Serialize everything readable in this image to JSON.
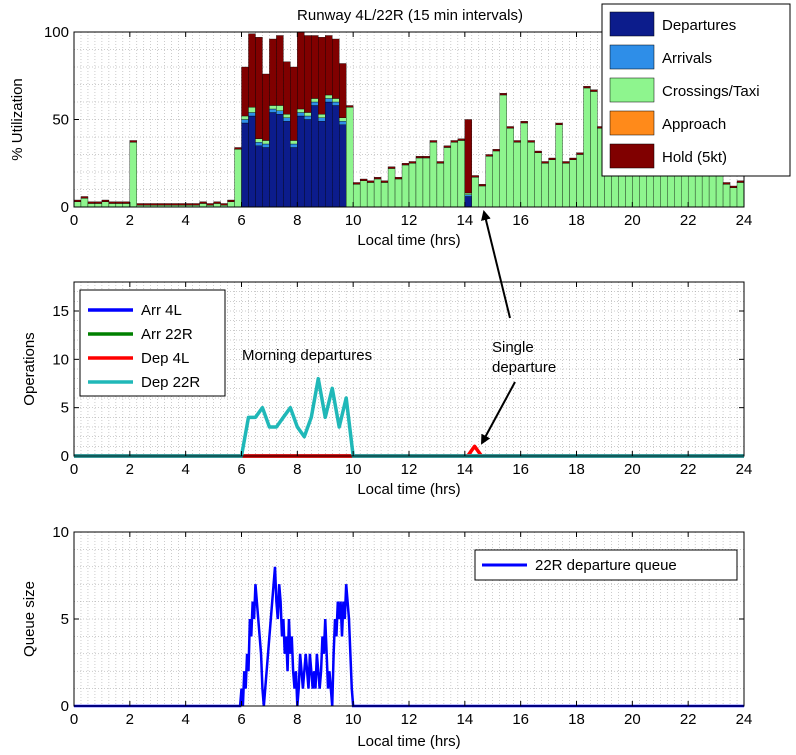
{
  "chart_data": [
    {
      "type": "bar",
      "stacked": true,
      "title": "Runway 4L/22R (15 min intervals)",
      "xlabel": "Local time (hrs)",
      "ylabel": "% Utilization",
      "xlim": [
        0,
        24
      ],
      "ylim": [
        0,
        100
      ],
      "xticks": [
        0,
        2,
        4,
        6,
        8,
        10,
        12,
        14,
        16,
        18,
        20,
        22,
        24
      ],
      "yticks": [
        0,
        50,
        100
      ],
      "grid": true,
      "legend_position": "top-right",
      "bin_width_hours": 0.25,
      "x": [
        0.125,
        0.375,
        0.625,
        0.875,
        1.125,
        1.375,
        1.625,
        1.875,
        2.125,
        2.375,
        2.625,
        2.875,
        3.125,
        3.375,
        3.625,
        3.875,
        4.125,
        4.375,
        4.625,
        4.875,
        5.125,
        5.375,
        5.625,
        5.875,
        6.125,
        6.375,
        6.625,
        6.875,
        7.125,
        7.375,
        7.625,
        7.875,
        8.125,
        8.375,
        8.625,
        8.875,
        9.125,
        9.375,
        9.625,
        9.875,
        10.125,
        10.375,
        10.625,
        10.875,
        11.125,
        11.375,
        11.625,
        11.875,
        12.125,
        12.375,
        12.625,
        12.875,
        13.125,
        13.375,
        13.625,
        13.875,
        14.125,
        14.375,
        14.625,
        14.875,
        15.125,
        15.375,
        15.625,
        15.875,
        16.125,
        16.375,
        16.625,
        16.875,
        17.125,
        17.375,
        17.625,
        17.875,
        18.125,
        18.375,
        18.625,
        18.875,
        19.125,
        19.375,
        19.625,
        19.875,
        20.125,
        20.375,
        20.625,
        20.875,
        21.125,
        21.375,
        21.625,
        21.875,
        22.125,
        22.375,
        22.625,
        22.875,
        23.125,
        23.375,
        23.625,
        23.875
      ],
      "series": [
        {
          "name": "Departures",
          "color": "#0c1c8c",
          "values": [
            0,
            0,
            0,
            0,
            0,
            0,
            0,
            0,
            0,
            0,
            0,
            0,
            0,
            0,
            0,
            0,
            0,
            0,
            0,
            0,
            0,
            0,
            0,
            0,
            48,
            52,
            35,
            34,
            54,
            53,
            49,
            34,
            52,
            50,
            58,
            49,
            60,
            58,
            47,
            0,
            0,
            0,
            0,
            0,
            0,
            0,
            0,
            0,
            0,
            0,
            0,
            0,
            0,
            0,
            0,
            0,
            6,
            0,
            0,
            0,
            0,
            0,
            0,
            0,
            0,
            0,
            0,
            0,
            0,
            0,
            0,
            0,
            0,
            0,
            0,
            0,
            0,
            0,
            0,
            0,
            0,
            0,
            0,
            0,
            0,
            0,
            0,
            0,
            0,
            0,
            0,
            0,
            0,
            0,
            0,
            0
          ]
        },
        {
          "name": "Arrivals",
          "color": "#2e8ee8",
          "values": [
            0,
            0,
            0,
            0,
            0,
            0,
            0,
            0,
            0,
            0,
            0,
            0,
            0,
            0,
            0,
            0,
            0,
            0,
            0,
            0,
            0,
            0,
            0,
            0,
            2,
            2,
            2,
            2,
            2,
            2,
            2,
            2,
            2,
            2,
            2,
            2,
            2,
            2,
            2,
            0,
            0,
            0,
            0,
            0,
            0,
            0,
            0,
            0,
            0,
            0,
            0,
            0,
            0,
            0,
            0,
            0,
            1,
            0,
            0,
            0,
            0,
            0,
            0,
            0,
            0,
            0,
            0,
            0,
            0,
            0,
            0,
            0,
            0,
            0,
            0,
            0,
            0,
            0,
            0,
            0,
            0,
            0,
            0,
            0,
            0,
            0,
            0,
            0,
            0,
            0,
            0,
            0,
            0,
            0,
            0,
            0
          ]
        },
        {
          "name": "Crossings/Taxi",
          "color": "#8ef58e",
          "values": [
            3,
            5,
            2,
            2,
            3,
            2,
            2,
            2,
            37,
            1,
            1,
            1,
            1,
            1,
            1,
            1,
            1,
            1,
            2,
            1,
            2,
            1,
            3,
            33,
            2,
            3,
            2,
            2,
            2,
            3,
            2,
            2,
            2,
            2,
            2,
            2,
            2,
            2,
            2,
            57,
            13,
            15,
            14,
            16,
            14,
            22,
            16,
            24,
            25,
            28,
            28,
            37,
            25,
            34,
            37,
            38,
            1,
            17,
            12,
            29,
            32,
            64,
            45,
            37,
            48,
            37,
            31,
            25,
            27,
            47,
            25,
            27,
            30,
            68,
            66,
            45,
            30,
            32,
            30,
            45,
            25,
            28,
            27,
            29,
            25,
            35,
            23,
            30,
            21,
            28,
            21,
            30,
            19,
            13,
            11,
            14
          ]
        },
        {
          "name": "Approach",
          "color": "#ff8a1a",
          "values": [
            0,
            0,
            0,
            0,
            0,
            0,
            0,
            0,
            0,
            0,
            0,
            0,
            0,
            0,
            0,
            0,
            0,
            0,
            0,
            0,
            0,
            0,
            0,
            0,
            0,
            0,
            0,
            0,
            0,
            0,
            0,
            0,
            0,
            0,
            0,
            0,
            0,
            0,
            0,
            0,
            0,
            0,
            0,
            0,
            0,
            0,
            0,
            0,
            0,
            0,
            0,
            0,
            0,
            0,
            0,
            0,
            0,
            0,
            0,
            0,
            0,
            0,
            0,
            0,
            0,
            0,
            0,
            0,
            0,
            0,
            0,
            0,
            0,
            0,
            0,
            0,
            0,
            0,
            0,
            0,
            0,
            0,
            0,
            0,
            0,
            0,
            0,
            0,
            0,
            0,
            0,
            0,
            0,
            0,
            0,
            0
          ]
        },
        {
          "name": "Hold (5kt)",
          "color": "#800000",
          "values": [
            1,
            1,
            1,
            1,
            1,
            1,
            1,
            1,
            1,
            1,
            1,
            1,
            1,
            1,
            1,
            1,
            1,
            1,
            1,
            1,
            1,
            1,
            1,
            1,
            28,
            42,
            58,
            38,
            38,
            40,
            30,
            42,
            44,
            44,
            36,
            44,
            34,
            34,
            31,
            1,
            1,
            1,
            1,
            1,
            1,
            1,
            1,
            1,
            1,
            1,
            1,
            1,
            1,
            1,
            1,
            1,
            42,
            1,
            1,
            1,
            1,
            1,
            1,
            1,
            1,
            1,
            1,
            1,
            1,
            1,
            1,
            1,
            1,
            1,
            1,
            1,
            1,
            1,
            1,
            1,
            1,
            1,
            1,
            1,
            1,
            1,
            1,
            1,
            1,
            1,
            1,
            1,
            1,
            1,
            1,
            1
          ]
        }
      ]
    },
    {
      "type": "line",
      "xlabel": "Local time (hrs)",
      "ylabel": "Operations",
      "xlim": [
        0,
        24
      ],
      "ylim": [
        0,
        18
      ],
      "xticks": [
        0,
        2,
        4,
        6,
        8,
        10,
        12,
        14,
        16,
        18,
        20,
        22,
        24
      ],
      "yticks": [
        0,
        5,
        10,
        15
      ],
      "grid": true,
      "legend_position": "top-left",
      "annotations": [
        {
          "text": "Morning departures",
          "x": 8.4,
          "y": 10.5
        },
        {
          "text": "Single",
          "x": 15.0,
          "y": 11.3
        },
        {
          "text": "departure",
          "x": 15.0,
          "y": 9.2
        }
      ],
      "series": [
        {
          "name": "Arr 4L",
          "color": "#0000ff",
          "x": [
            0,
            24
          ],
          "y": [
            0,
            0
          ]
        },
        {
          "name": "Arr 22R",
          "color": "#008000",
          "x": [
            0,
            24
          ],
          "y": [
            0,
            0
          ]
        },
        {
          "name": "Dep 4L",
          "color": "#ff0000",
          "x": [
            0,
            6,
            10,
            14.1,
            14.35,
            14.6,
            24
          ],
          "y": [
            0,
            0,
            0,
            0,
            1,
            0,
            0
          ]
        },
        {
          "name": "Dep 22R",
          "color": "#20b8b8",
          "x": [
            0,
            6.0,
            6.25,
            6.5,
            6.75,
            7.0,
            7.25,
            7.5,
            7.75,
            8.0,
            8.25,
            8.5,
            8.75,
            9.0,
            9.25,
            9.5,
            9.75,
            10.0,
            24
          ],
          "y": [
            0,
            0,
            4,
            4,
            5,
            3,
            3,
            4,
            5,
            3,
            2,
            4,
            8,
            4,
            7,
            3,
            6,
            0,
            0
          ]
        }
      ]
    },
    {
      "type": "line",
      "xlabel": "Local time (hrs)",
      "ylabel": "Queue size",
      "xlim": [
        0,
        24
      ],
      "ylim": [
        0,
        10
      ],
      "xticks": [
        0,
        2,
        4,
        6,
        8,
        10,
        12,
        14,
        16,
        18,
        20,
        22,
        24
      ],
      "yticks": [
        0,
        5,
        10
      ],
      "grid": true,
      "legend_position": "top-right",
      "series": [
        {
          "name": "22R departure queue",
          "color": "#0000ff",
          "x": [
            0,
            5.95,
            6.0,
            6.05,
            6.1,
            6.15,
            6.2,
            6.25,
            6.3,
            6.35,
            6.4,
            6.45,
            6.5,
            6.55,
            6.6,
            6.65,
            6.7,
            6.75,
            6.8,
            6.85,
            6.9,
            6.95,
            7.0,
            7.05,
            7.1,
            7.15,
            7.2,
            7.25,
            7.3,
            7.35,
            7.4,
            7.45,
            7.5,
            7.55,
            7.6,
            7.65,
            7.7,
            7.75,
            7.8,
            7.85,
            7.9,
            7.95,
            8.0,
            8.05,
            8.1,
            8.15,
            8.2,
            8.25,
            8.3,
            8.35,
            8.4,
            8.45,
            8.5,
            8.55,
            8.6,
            8.65,
            8.7,
            8.75,
            8.8,
            8.85,
            8.9,
            8.95,
            9.0,
            9.05,
            9.1,
            9.15,
            9.2,
            9.25,
            9.3,
            9.35,
            9.4,
            9.45,
            9.5,
            9.55,
            9.6,
            9.65,
            9.7,
            9.75,
            9.8,
            9.85,
            9.9,
            9.95,
            10.0,
            24
          ],
          "y": [
            0,
            0,
            1,
            0,
            2,
            1,
            3,
            2,
            5,
            4,
            6,
            5,
            7,
            6,
            5,
            4,
            3,
            1,
            0,
            1,
            2,
            3,
            4,
            5,
            6,
            7,
            8,
            6,
            5,
            7,
            6,
            4,
            5,
            3,
            4,
            2,
            5,
            3,
            4,
            2,
            1,
            2,
            0,
            1,
            3,
            2,
            1,
            2,
            3,
            2,
            1,
            3,
            2,
            1,
            2,
            1,
            3,
            2,
            1,
            2,
            4,
            3,
            5,
            3,
            1,
            2,
            1,
            0,
            3,
            5,
            4,
            6,
            5,
            6,
            4,
            6,
            5,
            7,
            6,
            5,
            3,
            1,
            0,
            0
          ]
        }
      ]
    }
  ]
}
